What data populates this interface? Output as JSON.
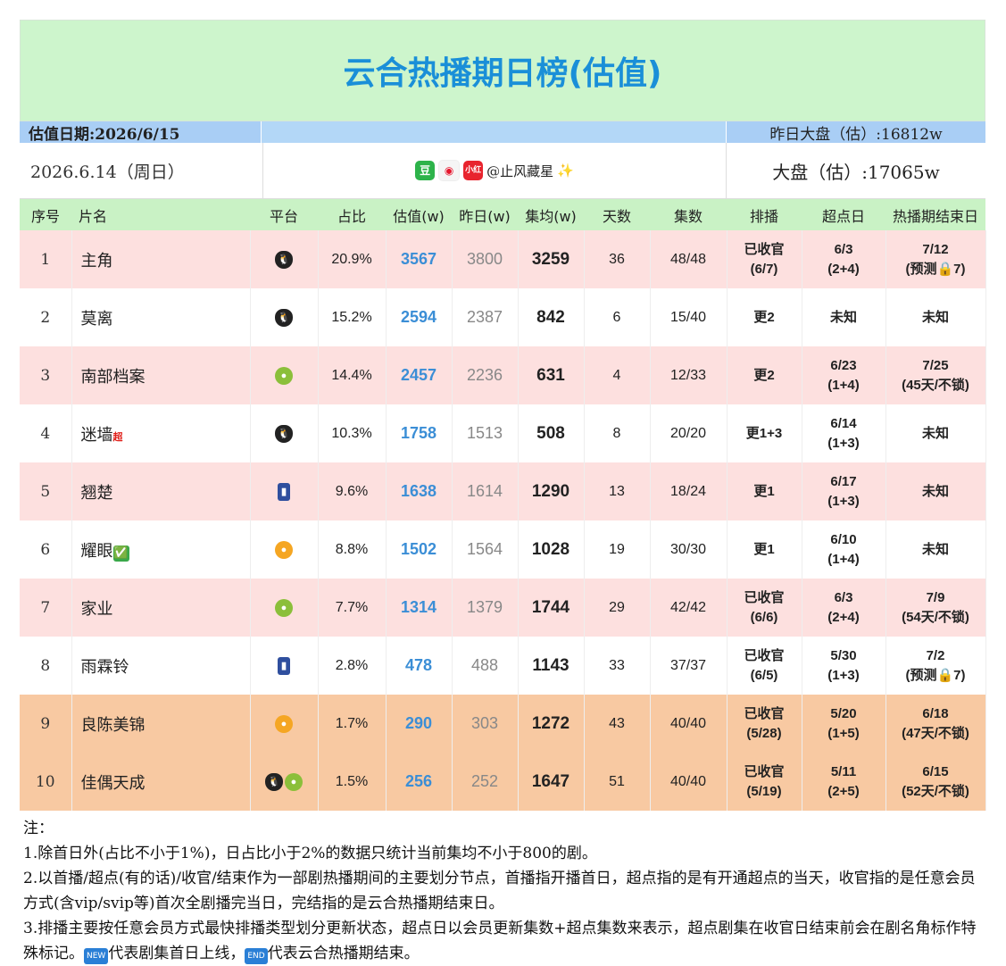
{
  "title": "云合热播期日榜(估值)",
  "date_label": "估值日期:2026/6/15",
  "yesterday_market": "昨日大盘（估）:16812w",
  "data_date": "2026.6.14（周日）",
  "author": "@止风藏星",
  "market": "大盘（估）:17065w",
  "social_icons": {
    "douban": "豆",
    "xhs": "小红书"
  },
  "headers": [
    "序号",
    "片名",
    "平台",
    "占比",
    "估值(w)",
    "昨日(w)",
    "集均(w)",
    "天数",
    "集数",
    "排播",
    "超点日",
    "热播期结束日"
  ],
  "rows": [
    {
      "idx": "1",
      "name": "主角",
      "tag": "",
      "platform": [
        "penguin-icon"
      ],
      "share": "20.9%",
      "est": "3567",
      "yest": "3800",
      "avg": "3259",
      "days": "36",
      "eps": "48/48",
      "rank": "已收官\n(6/7)",
      "sp": "6/3\n(2+4)",
      "end": "7/12\n(预测🔒7)",
      "style": "pink"
    },
    {
      "idx": "2",
      "name": "莫离",
      "tag": "",
      "platform": [
        "penguin-icon"
      ],
      "share": "15.2%",
      "est": "2594",
      "yest": "2387",
      "avg": "842",
      "days": "6",
      "eps": "15/40",
      "rank": "更2",
      "sp": "未知",
      "end": "未知",
      "style": "white"
    },
    {
      "idx": "3",
      "name": "南部档案",
      "tag": "",
      "platform": [
        "kiwi-icon"
      ],
      "share": "14.4%",
      "est": "2457",
      "yest": "2236",
      "avg": "631",
      "days": "4",
      "eps": "12/33",
      "rank": "更2",
      "sp": "6/23\n(1+4)",
      "end": "7/25\n(45天/不锁)",
      "style": "pink"
    },
    {
      "idx": "4",
      "name": "迷墙",
      "tag": "超",
      "platform": [
        "penguin-icon"
      ],
      "share": "10.3%",
      "est": "1758",
      "yest": "1513",
      "avg": "508",
      "days": "8",
      "eps": "20/20",
      "rank": "更1+3",
      "sp": "6/14\n(1+3)",
      "end": "未知",
      "style": "white"
    },
    {
      "idx": "5",
      "name": "翘楚",
      "tag": "",
      "platform": [
        "jeans-icon"
      ],
      "share": "9.6%",
      "est": "1638",
      "yest": "1614",
      "avg": "1290",
      "days": "13",
      "eps": "18/24",
      "rank": "更1",
      "sp": "6/17\n(1+3)",
      "end": "未知",
      "style": "pink"
    },
    {
      "idx": "6",
      "name": "耀眼",
      "tag": "✅",
      "platform": [
        "mango-icon"
      ],
      "share": "8.8%",
      "est": "1502",
      "yest": "1564",
      "avg": "1028",
      "days": "19",
      "eps": "30/30",
      "rank": "更1",
      "sp": "6/10\n(1+4)",
      "end": "未知",
      "style": "white"
    },
    {
      "idx": "7",
      "name": "家业",
      "tag": "",
      "platform": [
        "kiwi-icon"
      ],
      "share": "7.7%",
      "est": "1314",
      "yest": "1379",
      "avg": "1744",
      "days": "29",
      "eps": "42/42",
      "rank": "已收官\n(6/6)",
      "sp": "6/3\n(2+4)",
      "end": "7/9\n(54天/不锁)",
      "style": "pink"
    },
    {
      "idx": "8",
      "name": "雨霖铃",
      "tag": "",
      "platform": [
        "jeans-icon"
      ],
      "share": "2.8%",
      "est": "478",
      "yest": "488",
      "avg": "1143",
      "days": "33",
      "eps": "37/37",
      "rank": "已收官\n(6/5)",
      "sp": "5/30\n(1+3)",
      "end": "7/2\n(预测🔒7)",
      "style": "white"
    },
    {
      "idx": "9",
      "name": "良陈美锦",
      "tag": "",
      "platform": [
        "mango-icon"
      ],
      "share": "1.7%",
      "est": "290",
      "yest": "303",
      "avg": "1272",
      "days": "43",
      "eps": "40/40",
      "rank": "已收官\n(5/28)",
      "sp": "5/20\n(1+5)",
      "end": "6/18\n(47天/不锁)",
      "style": "orange"
    },
    {
      "idx": "10",
      "name": "佳偶天成",
      "tag": "",
      "platform": [
        "penguin-icon",
        "kiwi-icon"
      ],
      "share": "1.5%",
      "est": "256",
      "yest": "252",
      "avg": "1647",
      "days": "51",
      "eps": "40/40",
      "rank": "已收官\n(5/19)",
      "sp": "5/11\n(2+5)",
      "end": "6/15\n(52天/不锁)",
      "style": "orange"
    }
  ],
  "notes": {
    "head": "注：",
    "n1": "1.除首日外(占比不小于1%)，日占比小于2%的数据只统计当前集均不小于800的剧。",
    "n2": "2.以首播/超点(有的话)/收官/结束作为一部剧热播期间的主要划分节点，首播指开播首日，超点指的是有开通超点的当天，收官指的是任意会员方式(含vip/svip等)首次全剧播完当日，完结指的是云合热播期结束日。",
    "n3a": "3.排播主要按任意会员方式最快排播类型划分更新状态，超点日以会员更新集数+超点集数来表示，超点剧集在收官日结束前会在剧名角标作特殊标记。",
    "new_tag": "NEW",
    "n3b": "代表剧集首日上线，",
    "end_tag": "END",
    "n3c": "代表云合热播期结束。"
  }
}
